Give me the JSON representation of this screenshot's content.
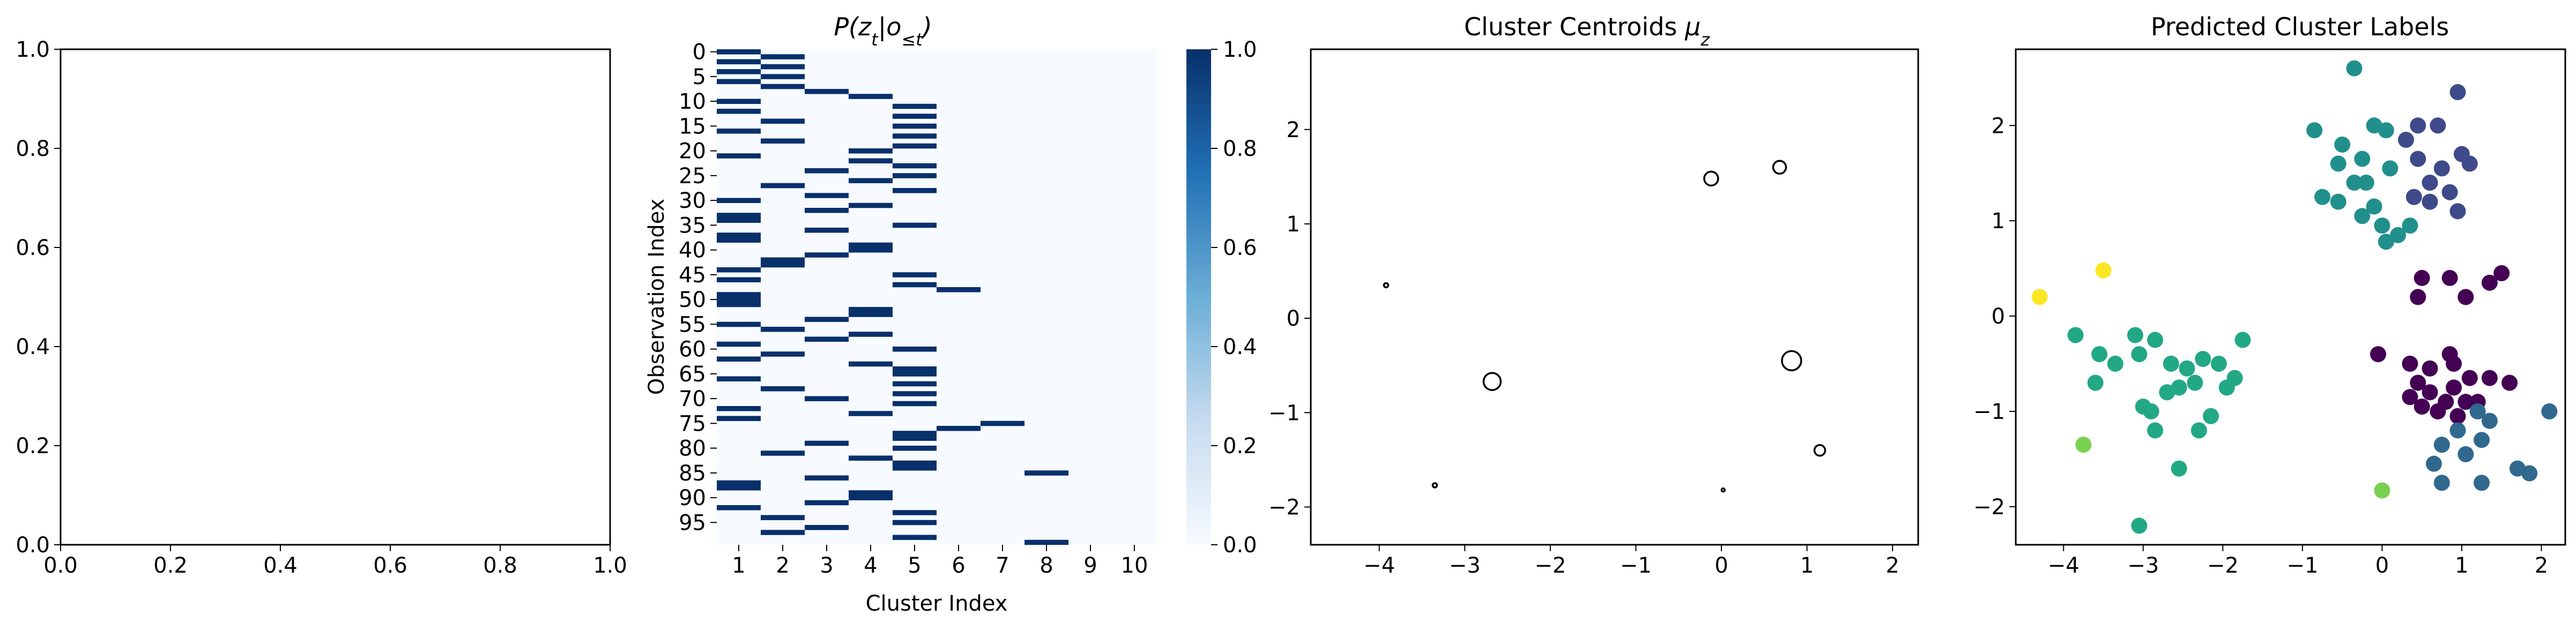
{
  "chart_data": [
    {
      "type": "scatter",
      "title": "",
      "xlabel": "",
      "ylabel": "",
      "xlim": [
        0,
        1
      ],
      "ylim": [
        0,
        1
      ],
      "x_ticks": [
        "0.0",
        "0.2",
        "0.4",
        "0.6",
        "0.8",
        "1.0"
      ],
      "y_ticks": [
        "0.0",
        "0.2",
        "0.4",
        "0.6",
        "0.8",
        "1.0"
      ],
      "points": []
    },
    {
      "type": "heatmap",
      "title": "P(z_t|o_{≤t})",
      "xlabel": "Cluster Index",
      "ylabel": "Observation Index",
      "colormap": "Blues",
      "colorbar_ticks": [
        "0.0",
        "0.2",
        "0.4",
        "0.6",
        "0.8",
        "1.0"
      ],
      "colorbar_range": [
        0,
        1
      ],
      "columns": [
        "1",
        "2",
        "3",
        "4",
        "5",
        "6",
        "7",
        "8",
        "9",
        "10"
      ],
      "y_ticks": [
        "0",
        "5",
        "10",
        "15",
        "20",
        "25",
        "30",
        "35",
        "40",
        "45",
        "50",
        "55",
        "60",
        "65",
        "70",
        "75",
        "80",
        "85",
        "90",
        "95"
      ],
      "n_rows": 100,
      "assignments": [
        1,
        2,
        1,
        2,
        1,
        2,
        1,
        2,
        3,
        4,
        1,
        5,
        1,
        5,
        2,
        5,
        1,
        5,
        2,
        5,
        4,
        1,
        4,
        5,
        3,
        5,
        4,
        2,
        5,
        3,
        1,
        4,
        3,
        1,
        1,
        5,
        3,
        1,
        1,
        4,
        4,
        3,
        2,
        2,
        1,
        5,
        1,
        5,
        6,
        1,
        1,
        1,
        4,
        4,
        3,
        1,
        2,
        4,
        3,
        1,
        5,
        2,
        1,
        4,
        5,
        5,
        1,
        5,
        2,
        5,
        3,
        5,
        1,
        4,
        1,
        7,
        6,
        5,
        5,
        3,
        5,
        2,
        4,
        5,
        5,
        8,
        3,
        1,
        1,
        4,
        4,
        3,
        1,
        5,
        2,
        5,
        3,
        2,
        5,
        8
      ]
    },
    {
      "type": "scatter",
      "title": "Cluster Centroids μ_z",
      "xlabel": "",
      "ylabel": "",
      "xlim": [
        -4.8,
        2.3
      ],
      "ylim": [
        -2.4,
        2.85
      ],
      "x_ticks": [
        -4,
        -3,
        -2,
        -1,
        0,
        1,
        2
      ],
      "y_ticks": [
        -2,
        -1,
        0,
        1,
        2
      ],
      "marker": "hollow circle, size proportional to cluster weight",
      "points": [
        {
          "x": -0.12,
          "y": 1.48,
          "size": 13
        },
        {
          "x": 0.68,
          "y": 1.6,
          "size": 12
        },
        {
          "x": 0.82,
          "y": -0.45,
          "size": 18
        },
        {
          "x": -2.68,
          "y": -0.67,
          "size": 16
        },
        {
          "x": -3.92,
          "y": 0.35,
          "size": 4
        },
        {
          "x": 1.15,
          "y": -1.4,
          "size": 10
        },
        {
          "x": -3.35,
          "y": -1.77,
          "size": 4
        },
        {
          "x": 0.02,
          "y": -1.82,
          "size": 3
        }
      ]
    },
    {
      "type": "scatter",
      "title": "Predicted Cluster Labels",
      "xlabel": "",
      "ylabel": "",
      "xlim": [
        -4.6,
        2.3
      ],
      "ylim": [
        -2.4,
        2.8
      ],
      "x_ticks": [
        -4,
        -3,
        -2,
        -1,
        0,
        1,
        2
      ],
      "y_ticks": [
        -2,
        -1,
        0,
        1,
        2
      ],
      "colormap": "viridis",
      "series": [
        {
          "color": "#440154",
          "points": [
            [
              0.5,
              0.4
            ],
            [
              0.45,
              0.2
            ],
            [
              0.85,
              0.4
            ],
            [
              1.05,
              0.2
            ],
            [
              1.35,
              0.35
            ],
            [
              1.5,
              0.45
            ],
            [
              -0.05,
              -0.4
            ],
            [
              0.35,
              -0.5
            ],
            [
              0.6,
              -0.55
            ],
            [
              0.85,
              -0.4
            ],
            [
              0.9,
              -0.5
            ],
            [
              1.1,
              -0.65
            ],
            [
              1.35,
              -0.65
            ],
            [
              1.6,
              -0.7
            ],
            [
              0.35,
              -0.85
            ],
            [
              0.6,
              -0.8
            ],
            [
              0.9,
              -0.75
            ],
            [
              1.05,
              -0.9
            ],
            [
              0.5,
              -0.95
            ],
            [
              0.7,
              -1.0
            ],
            [
              0.95,
              -1.05
            ],
            [
              1.2,
              -0.9
            ],
            [
              0.8,
              -0.9
            ],
            [
              0.45,
              -0.7
            ]
          ]
        },
        {
          "color": "#3e4a89",
          "points": [
            [
              0.3,
              1.85
            ],
            [
              0.45,
              2.0
            ],
            [
              0.7,
              2.0
            ],
            [
              0.95,
              2.35
            ],
            [
              0.45,
              1.65
            ],
            [
              0.6,
              1.4
            ],
            [
              0.75,
              1.55
            ],
            [
              1.0,
              1.7
            ],
            [
              1.1,
              1.6
            ],
            [
              0.4,
              1.25
            ],
            [
              0.6,
              1.2
            ],
            [
              0.85,
              1.3
            ],
            [
              0.95,
              1.1
            ]
          ]
        },
        {
          "color": "#31688e",
          "points": [
            [
              1.2,
              -1.0
            ],
            [
              1.35,
              -1.1
            ],
            [
              1.25,
              -1.3
            ],
            [
              0.95,
              -1.2
            ],
            [
              1.05,
              -1.45
            ],
            [
              0.75,
              -1.35
            ],
            [
              0.65,
              -1.55
            ],
            [
              0.75,
              -1.75
            ],
            [
              1.25,
              -1.75
            ],
            [
              1.7,
              -1.6
            ],
            [
              1.85,
              -1.65
            ],
            [
              2.1,
              -1.0
            ]
          ]
        },
        {
          "color": "#21908d",
          "points": [
            [
              -0.35,
              2.6
            ],
            [
              -0.85,
              1.95
            ],
            [
              -0.5,
              1.8
            ],
            [
              -0.25,
              1.65
            ],
            [
              -0.1,
              2.0
            ],
            [
              0.05,
              1.95
            ],
            [
              0.1,
              1.55
            ],
            [
              -0.55,
              1.6
            ],
            [
              -0.35,
              1.4
            ],
            [
              -0.2,
              1.4
            ],
            [
              -0.75,
              1.25
            ],
            [
              -0.55,
              1.2
            ],
            [
              -0.25,
              1.05
            ],
            [
              0.0,
              0.95
            ],
            [
              -0.1,
              1.15
            ],
            [
              0.2,
              0.85
            ],
            [
              0.35,
              0.95
            ],
            [
              0.05,
              0.78
            ]
          ]
        },
        {
          "color": "#22a884",
          "points": [
            [
              -3.85,
              -0.2
            ],
            [
              -3.55,
              -0.4
            ],
            [
              -3.35,
              -0.5
            ],
            [
              -3.1,
              -0.2
            ],
            [
              -2.85,
              -0.25
            ],
            [
              -3.05,
              -0.4
            ],
            [
              -3.6,
              -0.7
            ],
            [
              -2.65,
              -0.5
            ],
            [
              -2.45,
              -0.55
            ],
            [
              -2.25,
              -0.45
            ],
            [
              -2.05,
              -0.5
            ],
            [
              -1.85,
              -0.65
            ],
            [
              -1.95,
              -0.75
            ],
            [
              -2.35,
              -0.7
            ],
            [
              -2.55,
              -0.75
            ],
            [
              -2.7,
              -0.8
            ],
            [
              -3.0,
              -0.95
            ],
            [
              -2.9,
              -1.0
            ],
            [
              -2.15,
              -1.05
            ],
            [
              -2.3,
              -1.2
            ],
            [
              -2.85,
              -1.2
            ],
            [
              -2.55,
              -1.6
            ],
            [
              -1.75,
              -0.25
            ],
            [
              -3.05,
              -2.2
            ]
          ]
        },
        {
          "color": "#7ad151",
          "points": [
            [
              -3.75,
              -1.35
            ],
            [
              0.0,
              -1.83
            ]
          ]
        },
        {
          "color": "#fde725",
          "points": [
            [
              -4.3,
              0.2
            ],
            [
              -3.5,
              0.48
            ]
          ]
        }
      ]
    }
  ]
}
